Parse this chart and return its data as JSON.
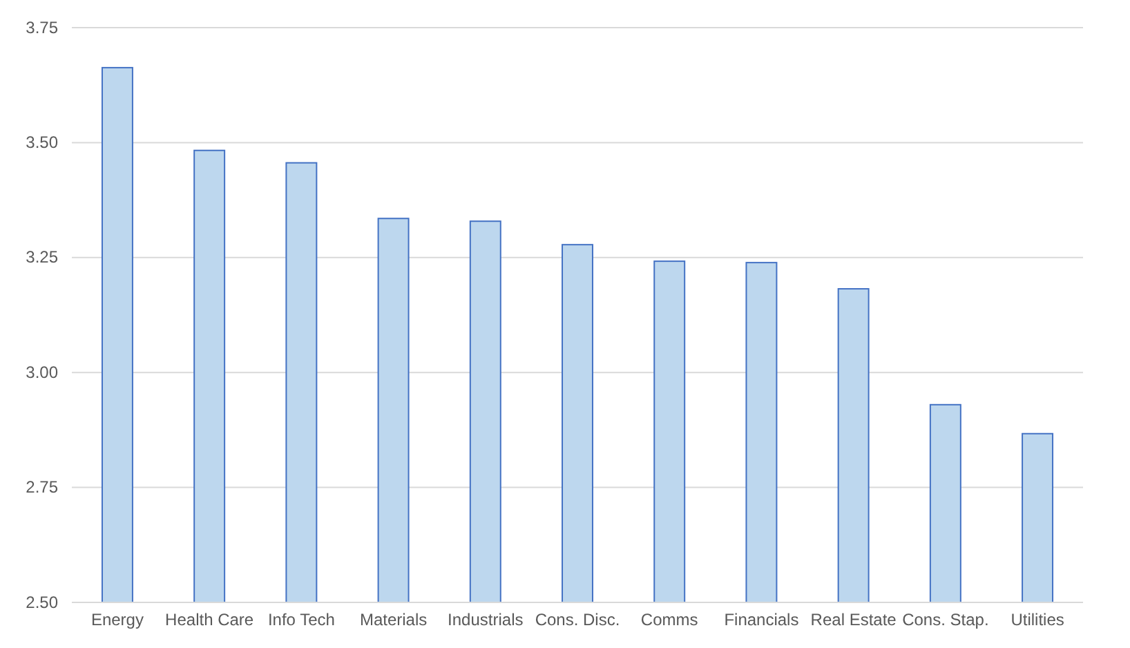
{
  "chart_data": {
    "type": "bar",
    "categories": [
      "Energy",
      "Health Care",
      "Info Tech",
      "Materials",
      "Industrials",
      "Cons. Disc.",
      "Comms",
      "Financials",
      "Real Estate",
      "Cons. Stap.",
      "Utilities"
    ],
    "values": [
      3.663,
      3.483,
      3.456,
      3.335,
      3.329,
      3.278,
      3.242,
      3.239,
      3.182,
      2.93,
      2.867
    ],
    "color": "#bdd7ee",
    "ylim": [
      2.5,
      3.75
    ],
    "yticks": [
      {
        "value": 2.5,
        "label": "2.50"
      },
      {
        "value": 2.75,
        "label": "2.75"
      },
      {
        "value": 3,
        "label": "3.00"
      },
      {
        "value": 3.25,
        "label": "3.25"
      },
      {
        "value": 3.5,
        "label": "3.50"
      },
      {
        "value": 3.75,
        "label": "3.75"
      }
    ],
    "grid": "y"
  }
}
